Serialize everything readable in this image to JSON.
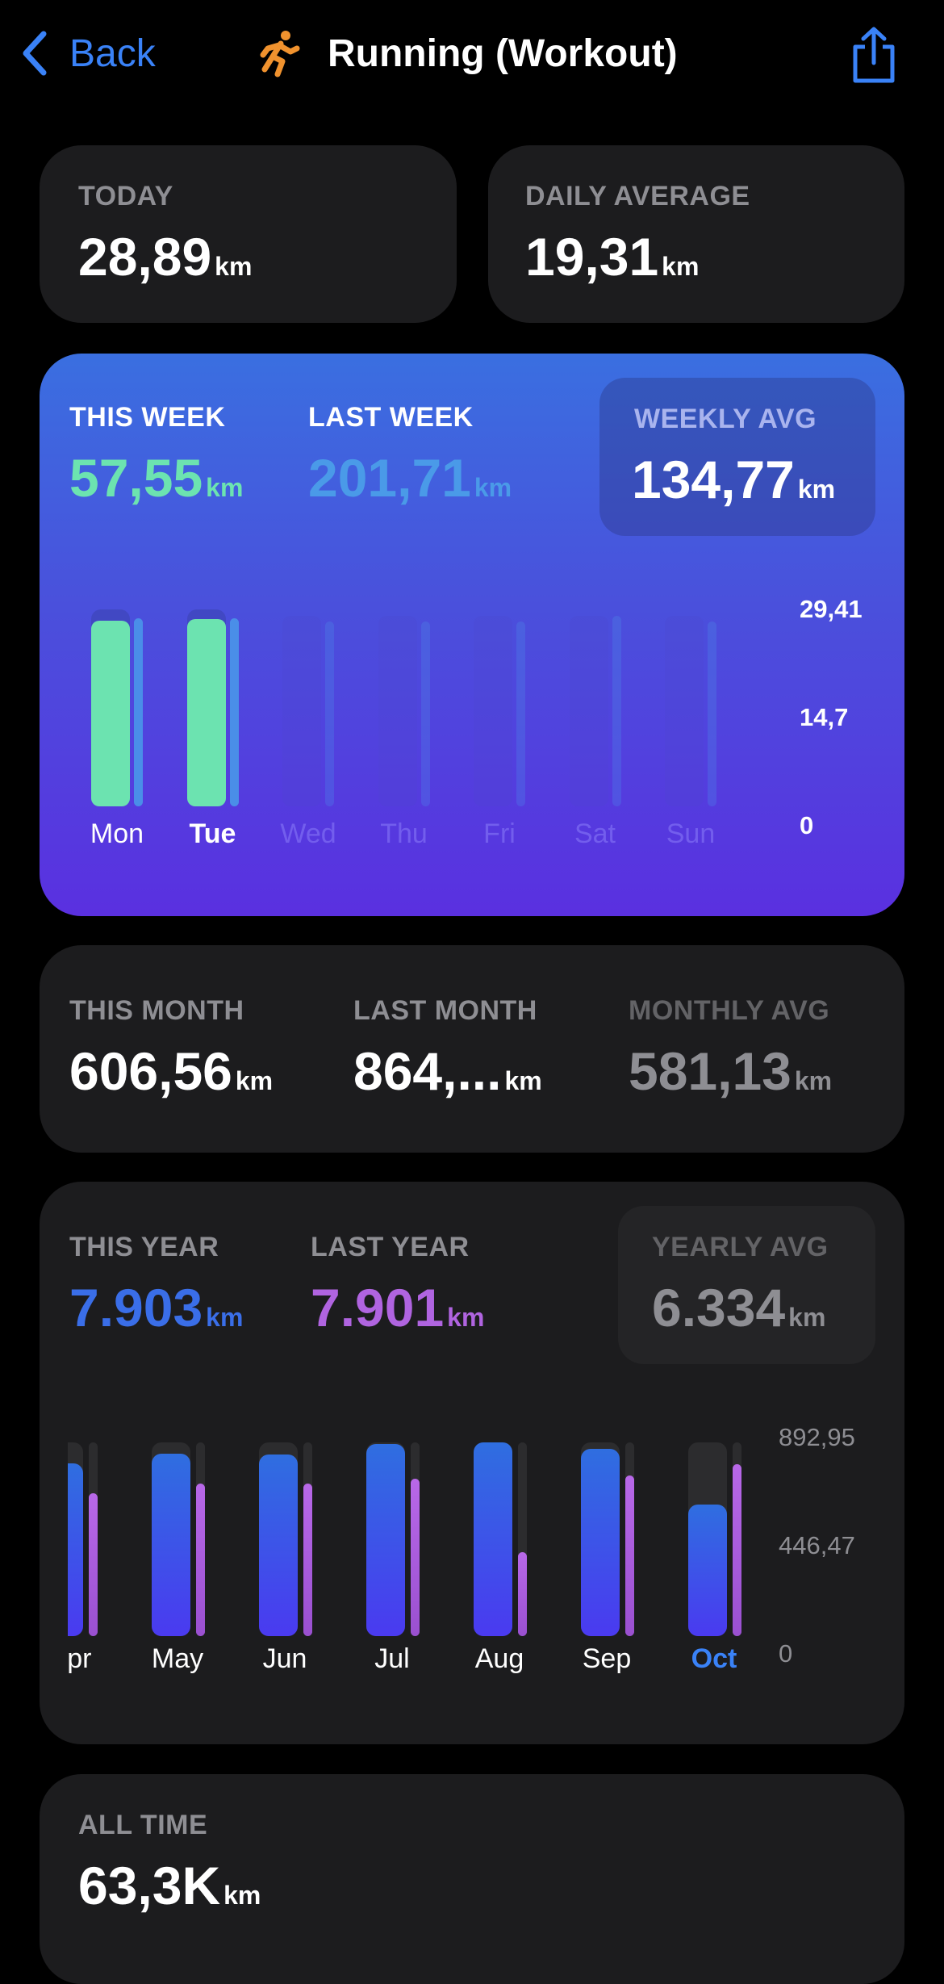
{
  "header": {
    "back_label": "Back",
    "title": "Running (Workout)",
    "icon": "running-figure-icon",
    "share_icon": "share-icon",
    "accent": "#3a82f7"
  },
  "today": {
    "label": "TODAY",
    "value": "28,89",
    "unit": "km"
  },
  "daily_avg": {
    "label": "DAILY AVERAGE",
    "value": "19,31",
    "unit": "km"
  },
  "week": {
    "this_label": "THIS WEEK",
    "this_value": "57,55",
    "last_label": "LAST WEEK",
    "last_value": "201,71",
    "avg_label": "WEEKLY AVG",
    "avg_value": "134,77",
    "unit": "km",
    "colors": {
      "this": "#6ce3b0",
      "last": "#4a8ee8"
    }
  },
  "month": {
    "this_label": "THIS MONTH",
    "this_value": "606,56",
    "last_label": "LAST MONTH",
    "last_value": "864,...",
    "avg_label": "MONTHLY AVG",
    "avg_value": "581,13",
    "unit": "km"
  },
  "year": {
    "this_label": "THIS YEAR",
    "this_value": "7.903",
    "last_label": "LAST YEAR",
    "last_value": "7.901",
    "avg_label": "YEARLY AVG",
    "avg_value": "6.334",
    "unit": "km",
    "colors": {
      "this": "#3a6ee8",
      "last": "#b064e0"
    }
  },
  "all_time": {
    "label": "ALL TIME",
    "value": "63,3K",
    "unit": "km"
  },
  "chart_data": [
    {
      "type": "bar",
      "categories": [
        "Mon",
        "Tue",
        "Wed",
        "Thu",
        "Fri",
        "Sat",
        "Sun"
      ],
      "highlighted": "Tue",
      "ylim": [
        0,
        29.41
      ],
      "ticks": [
        "29,41",
        "14,7",
        "0"
      ],
      "series": [
        {
          "name": "THIS WEEK",
          "values": [
            28.66,
            28.89,
            null,
            null,
            null,
            null,
            null
          ]
        },
        {
          "name": "LAST WEEK",
          "values": [
            29.0,
            29.0,
            28.5,
            28.5,
            28.5,
            29.4,
            28.5
          ]
        }
      ]
    },
    {
      "type": "bar",
      "categories": [
        "Apr",
        "May",
        "Jun",
        "Jul",
        "Aug",
        "Sep",
        "Oct"
      ],
      "highlighted": "Oct",
      "ylim": [
        0,
        892.95
      ],
      "ticks": [
        "892,95",
        "446,47",
        "0"
      ],
      "series": [
        {
          "name": "THIS YEAR",
          "values": [
            796,
            842,
            836,
            885,
            893,
            864,
            607
          ]
        },
        {
          "name": "LAST YEAR",
          "values": [
            659,
            703,
            703,
            726,
            388,
            740,
            794
          ]
        }
      ]
    }
  ]
}
